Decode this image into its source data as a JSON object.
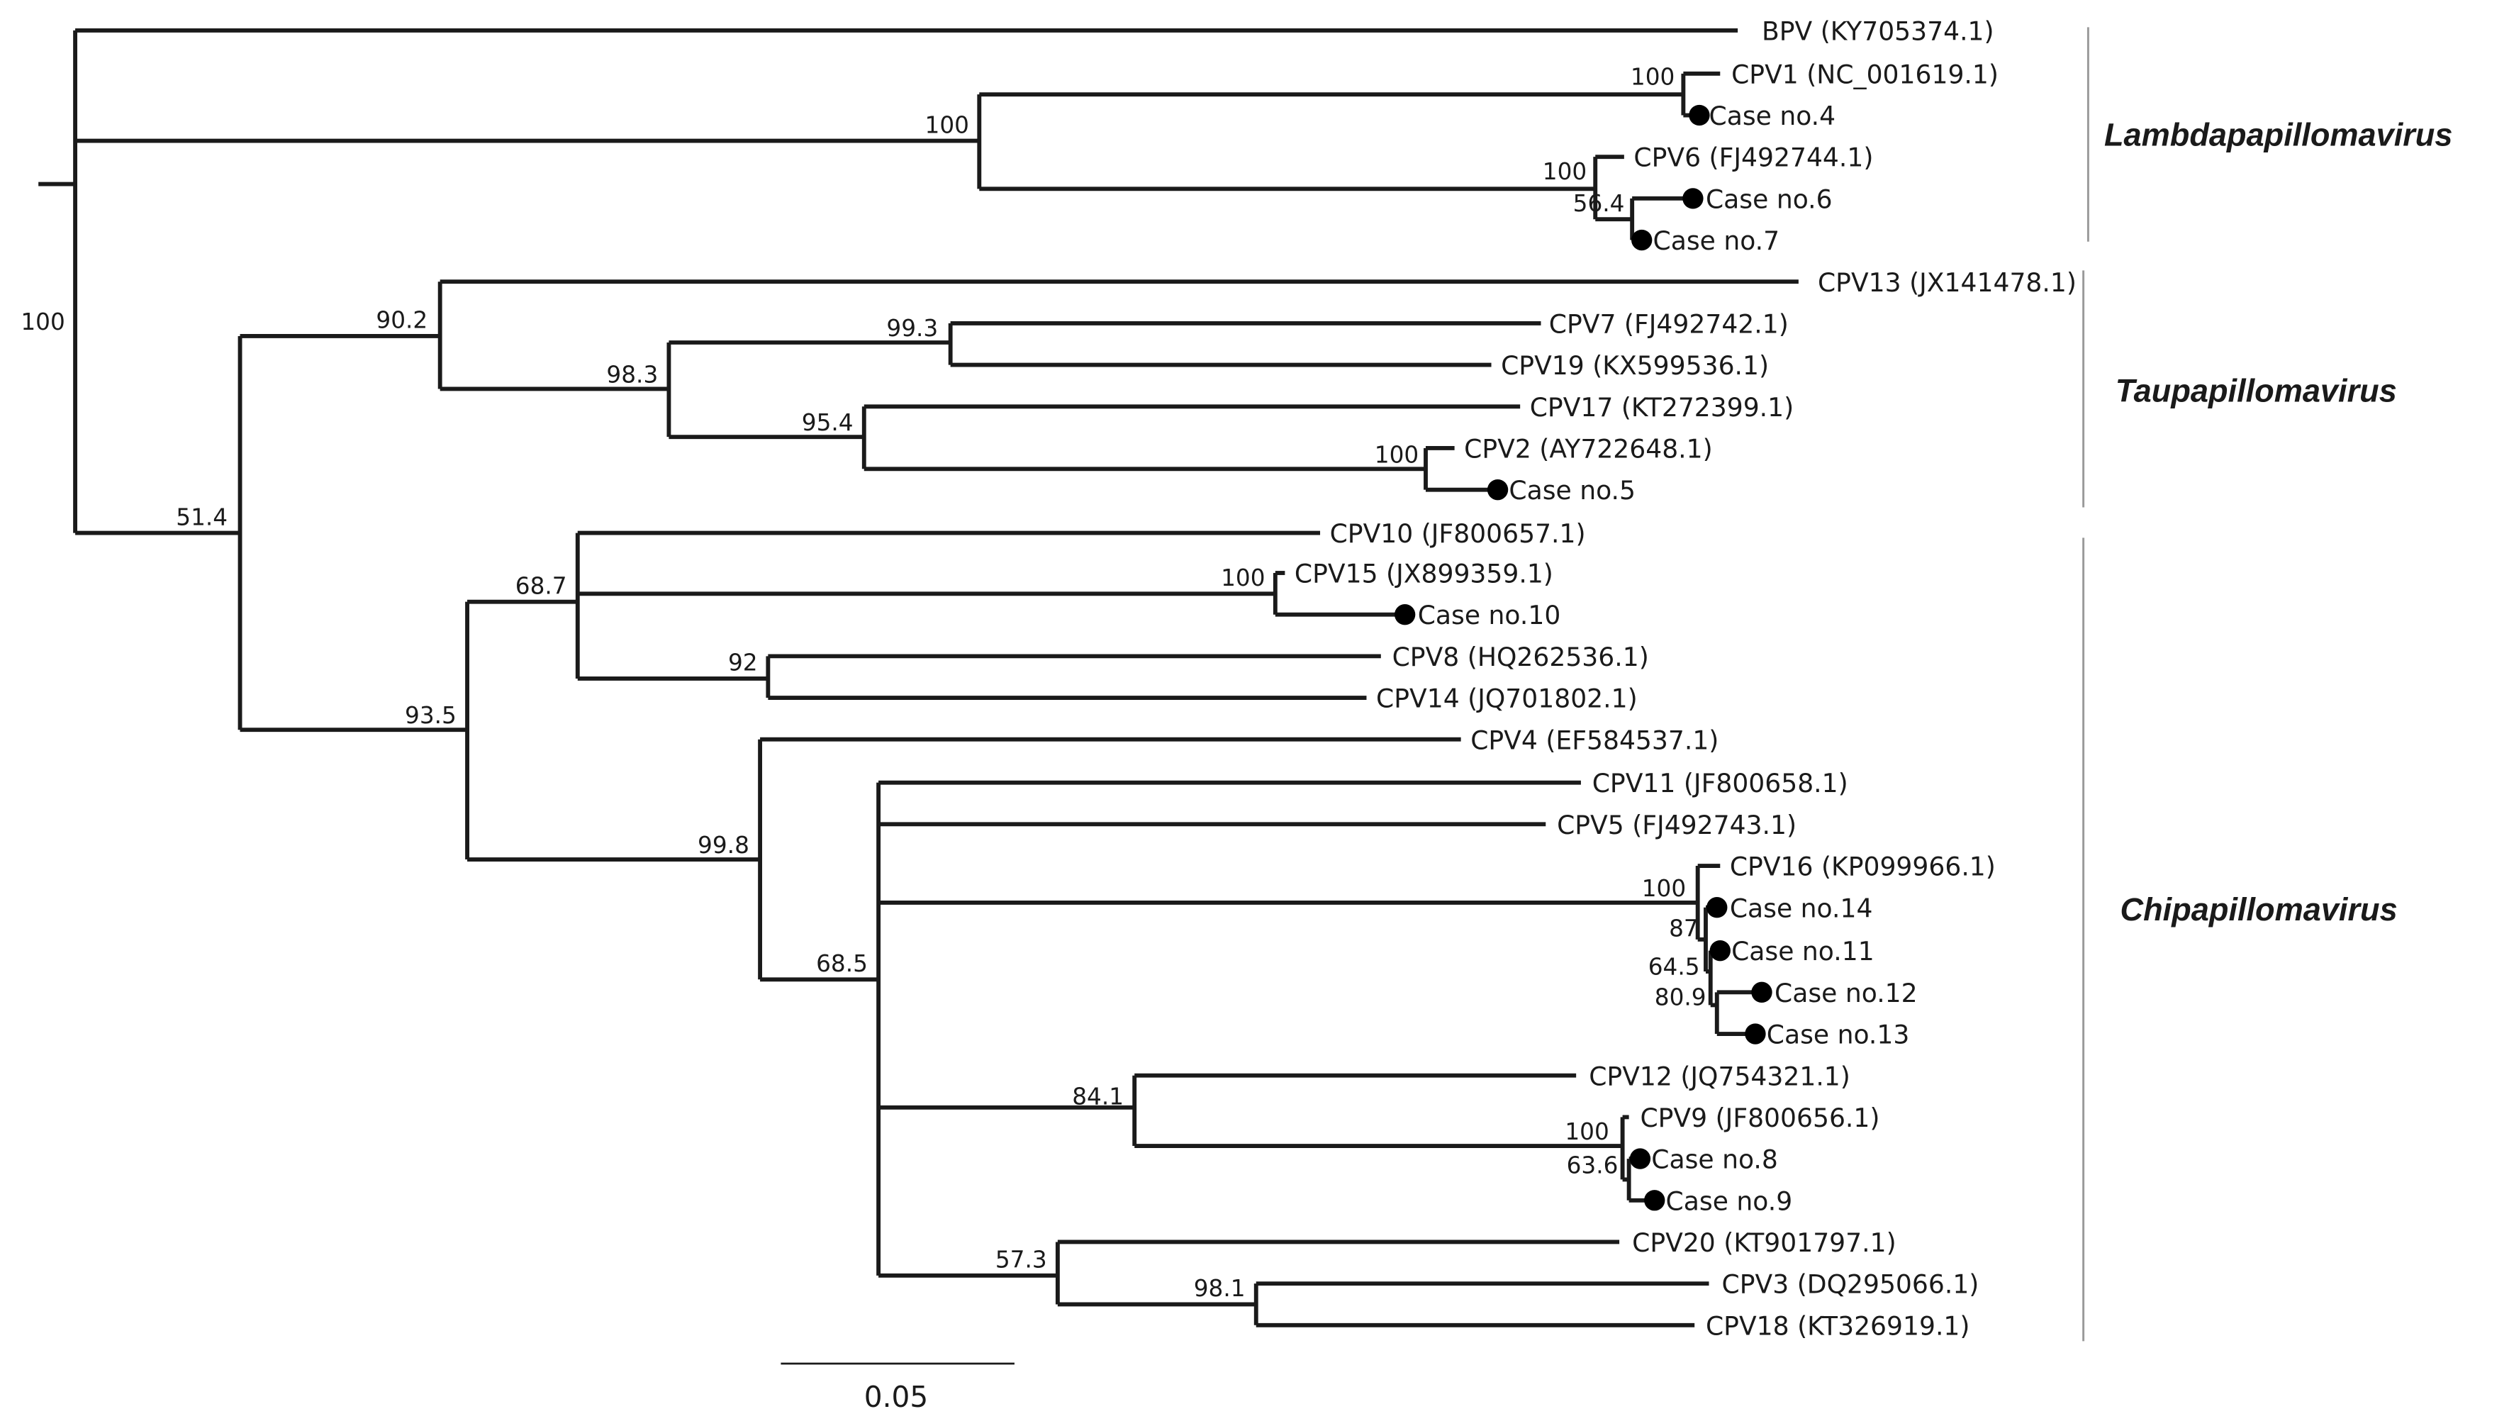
{
  "taxa": {
    "bpv": "BPV (KY705374.1)",
    "cpv1": "CPV1 (NC_001619.1)",
    "case4": "Case no.4",
    "cpv6": "CPV6 (FJ492744.1)",
    "case6": "Case no.6",
    "case7": "Case no.7",
    "cpv13": "CPV13 (JX141478.1)",
    "cpv7": "CPV7 (FJ492742.1)",
    "cpv19": "CPV19 (KX599536.1)",
    "cpv17": "CPV17 (KT272399.1)",
    "cpv2": "CPV2 (AY722648.1)",
    "case5": "Case no.5",
    "cpv10": "CPV10 (JF800657.1)",
    "cpv15": "CPV15 (JX899359.1)",
    "case10": "Case no.10",
    "cpv8": "CPV8 (HQ262536.1)",
    "cpv14": "CPV14 (JQ701802.1)",
    "cpv4": "CPV4 (EF584537.1)",
    "cpv11": "CPV11 (JF800658.1)",
    "cpv5": "CPV5 (FJ492743.1)",
    "cpv16": "CPV16 (KP099966.1)",
    "case14": "Case no.14",
    "case11": "Case no.11",
    "case12": "Case no.12",
    "case13": "Case no.13",
    "cpv12": "CPV12 (JQ754321.1)",
    "cpv9": "CPV9 (JF800656.1)",
    "case8": "Case no.8",
    "case9": "Case no.9",
    "cpv20": "CPV20 (KT901797.1)",
    "cpv3": "CPV3 (DQ295066.1)",
    "cpv18": "CPV18 (KT326919.1)"
  },
  "support": {
    "root": "100",
    "lambda_clade": "100",
    "cpv1_case4": "100",
    "cpv6_clade": "100",
    "case6_case7": "56.4",
    "tau_chi": "51.4",
    "tau_clade": "90.2",
    "cpv7_to_cpv2": "98.3",
    "cpv7_cpv19": "99.3",
    "cpv17_cpv2": "95.4",
    "cpv2_case5": "100",
    "chi_clade": "93.5",
    "cpv10_to_cpv14": "68.7",
    "cpv15_case10": "100",
    "cpv8_cpv14": "92",
    "cpv4_clade": "99.8",
    "cpv11_clade": "68.5",
    "cpv16_clade": "100",
    "case14_group": "87",
    "case11_group": "64.5",
    "case12_case13": "80.9",
    "cpv12_cpv9": "84.1",
    "cpv9_clade": "100",
    "case8_case9": "63.6",
    "cpv20_clade": "57.3",
    "cpv3_cpv18": "98.1"
  },
  "genera": {
    "lambda": "Lambdapapillomavirus",
    "tau": "Taupapillomavirus",
    "chi": "Chipapillomavirus"
  },
  "scale_bar": {
    "label": "0.05"
  },
  "colors": {
    "branch": "#1a1a1a",
    "bracket": "#9a9a9a",
    "marker": "#000000"
  }
}
